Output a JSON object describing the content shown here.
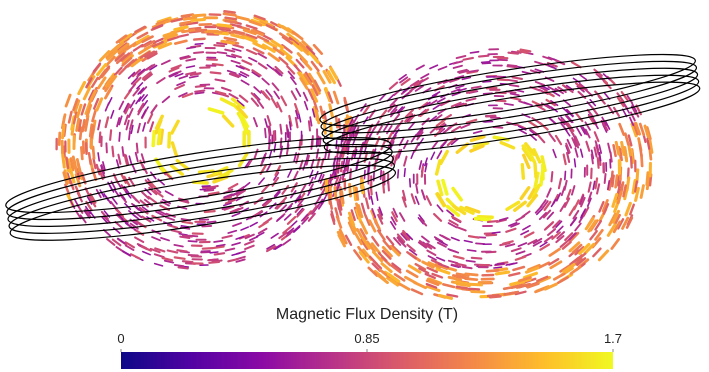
{
  "colorbar": {
    "title": "Magnetic Flux Density (T)",
    "range": [
      0,
      1.7
    ],
    "ticks": [
      0,
      0.85,
      1.7
    ],
    "colormap": [
      "#0d0887",
      "#5302a3",
      "#8b0aa5",
      "#b83289",
      "#db5c68",
      "#f48849",
      "#febd2a",
      "#f0f921"
    ]
  }
}
